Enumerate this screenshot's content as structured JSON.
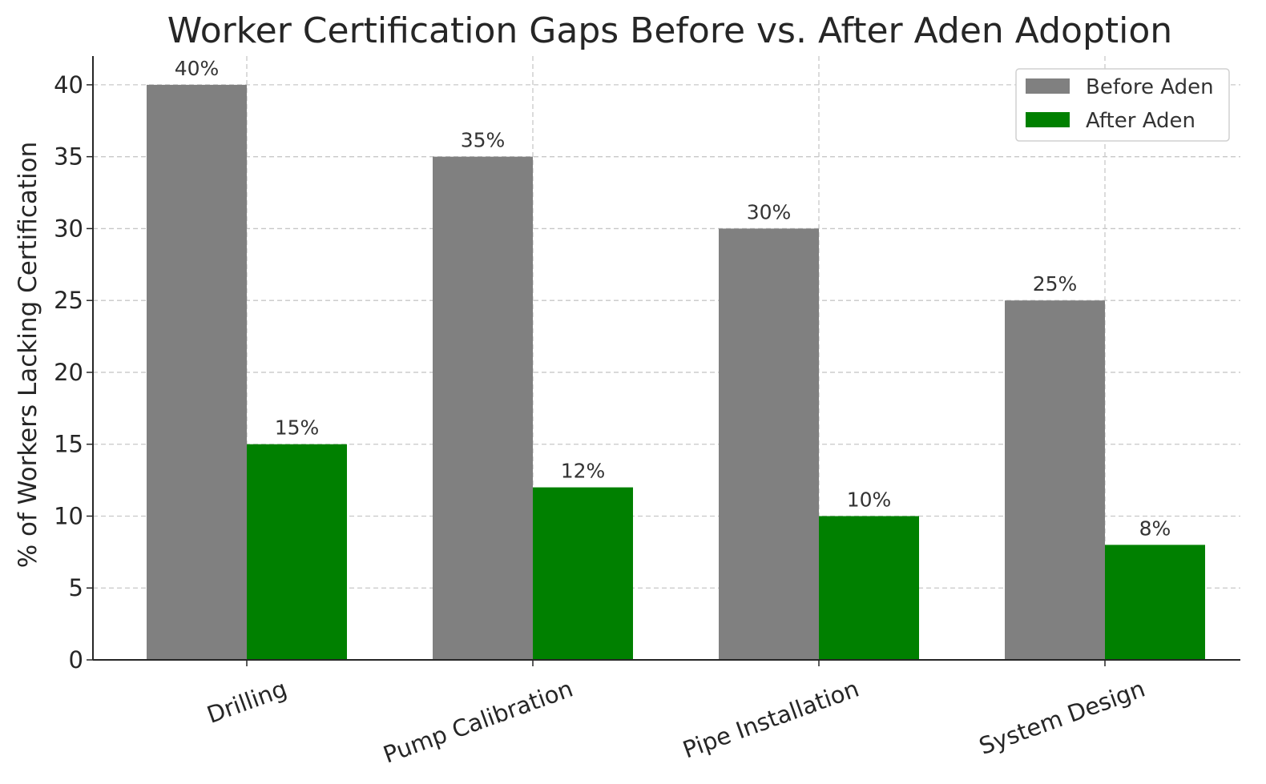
{
  "chart_data": {
    "type": "bar",
    "title": "Worker Certification Gaps Before vs. After Aden Adoption",
    "xlabel": "",
    "ylabel": "% of Workers Lacking Certification",
    "categories": [
      "Drilling",
      "Pump Calibration",
      "Pipe Installation",
      "System Design"
    ],
    "series": [
      {
        "name": "Before Aden",
        "values": [
          40,
          35,
          30,
          25
        ],
        "labels": [
          "40%",
          "35%",
          "30%",
          "25%"
        ],
        "color": "#808080"
      },
      {
        "name": "After Aden",
        "values": [
          15,
          12,
          10,
          8
        ],
        "labels": [
          "15%",
          "12%",
          "10%",
          "8%"
        ],
        "color": "#008000"
      }
    ],
    "ylim": [
      0,
      42
    ],
    "yticks": [
      0,
      5,
      10,
      15,
      20,
      25,
      30,
      35,
      40
    ],
    "grid": true,
    "legend_position": "top-right"
  }
}
